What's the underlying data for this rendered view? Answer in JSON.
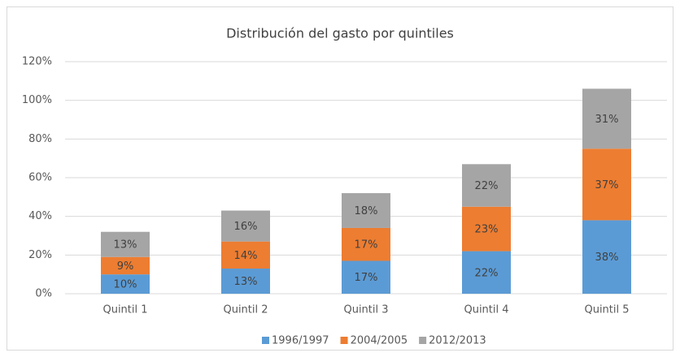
{
  "chart_data": {
    "type": "stacked_bar",
    "title": "Distribución del gasto por quintiles",
    "categories": [
      "Quintil 1",
      "Quintil 2",
      "Quintil 3",
      "Quintil 4",
      "Quintil 5"
    ],
    "series": [
      {
        "name": "1996/1997",
        "color": "#5b9bd5",
        "values": [
          10,
          13,
          17,
          22,
          38
        ],
        "value_labels": [
          "10%",
          "13%",
          "17%",
          "22%",
          "38%"
        ]
      },
      {
        "name": "2004/2005",
        "color": "#ed7d31",
        "values": [
          9,
          14,
          17,
          23,
          37
        ],
        "value_labels": [
          "9%",
          "14%",
          "17%",
          "23%",
          "37%"
        ]
      },
      {
        "name": "2012/2013",
        "color": "#a5a5a5",
        "values": [
          13,
          16,
          18,
          22,
          31
        ],
        "value_labels": [
          "13%",
          "16%",
          "18%",
          "22%",
          "31%"
        ]
      }
    ],
    "ylim": [
      0,
      120
    ],
    "yticks": [
      {
        "value": 0,
        "label": "0%"
      },
      {
        "value": 20,
        "label": "20%"
      },
      {
        "value": 40,
        "label": "40%"
      },
      {
        "value": 60,
        "label": "60%"
      },
      {
        "value": 80,
        "label": "80%"
      },
      {
        "value": 100,
        "label": "100%"
      },
      {
        "value": 120,
        "label": "120%"
      }
    ],
    "grid": true,
    "legend": "bottom"
  }
}
